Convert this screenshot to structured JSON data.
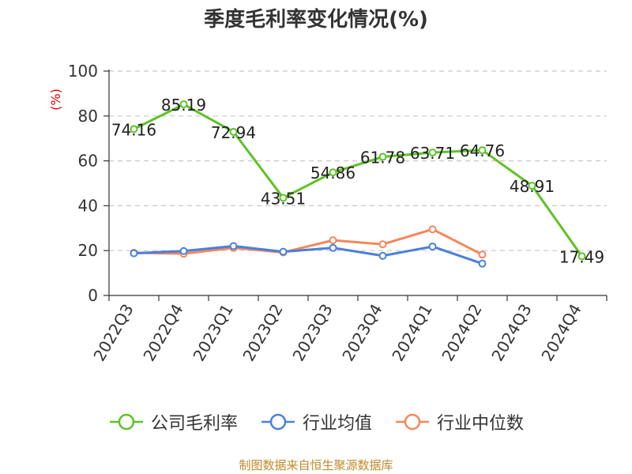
{
  "title": "季度毛利率变化情况(%)",
  "source": "制图数据来自恒生聚源数据库",
  "chart_data": {
    "type": "line",
    "title": "季度毛利率变化情况(%)",
    "ylabel": "(%)",
    "xlabel": "",
    "ylim": [
      0,
      100
    ],
    "yticks": [
      0,
      20,
      40,
      60,
      80,
      100
    ],
    "grid": true,
    "legend_position": "bottom",
    "categories": [
      "2022Q3",
      "2022Q4",
      "2023Q1",
      "2023Q2",
      "2023Q3",
      "2023Q4",
      "2024Q1",
      "2024Q2",
      "2024Q3",
      "2024Q4"
    ],
    "series": [
      {
        "name": "公司毛利率",
        "color": "#5cc323",
        "values": [
          74.16,
          85.19,
          72.94,
          43.51,
          54.86,
          61.78,
          63.71,
          64.76,
          48.91,
          17.49
        ],
        "labels": [
          "74.16",
          "85.19",
          "72.94",
          "43.51",
          "54.86",
          "61.78",
          "63.71",
          "64.76",
          "48.91",
          "17.49"
        ]
      },
      {
        "name": "行业均值",
        "color": "#4a7fdc",
        "values": [
          18.8,
          19.8,
          22.0,
          19.5,
          21.2,
          17.7,
          21.8,
          14.2,
          null,
          null
        ]
      },
      {
        "name": "行业中位数",
        "color": "#f2875a",
        "values": [
          19.0,
          18.6,
          21.2,
          19.2,
          24.6,
          22.8,
          29.5,
          18.2,
          null,
          null
        ]
      }
    ]
  }
}
